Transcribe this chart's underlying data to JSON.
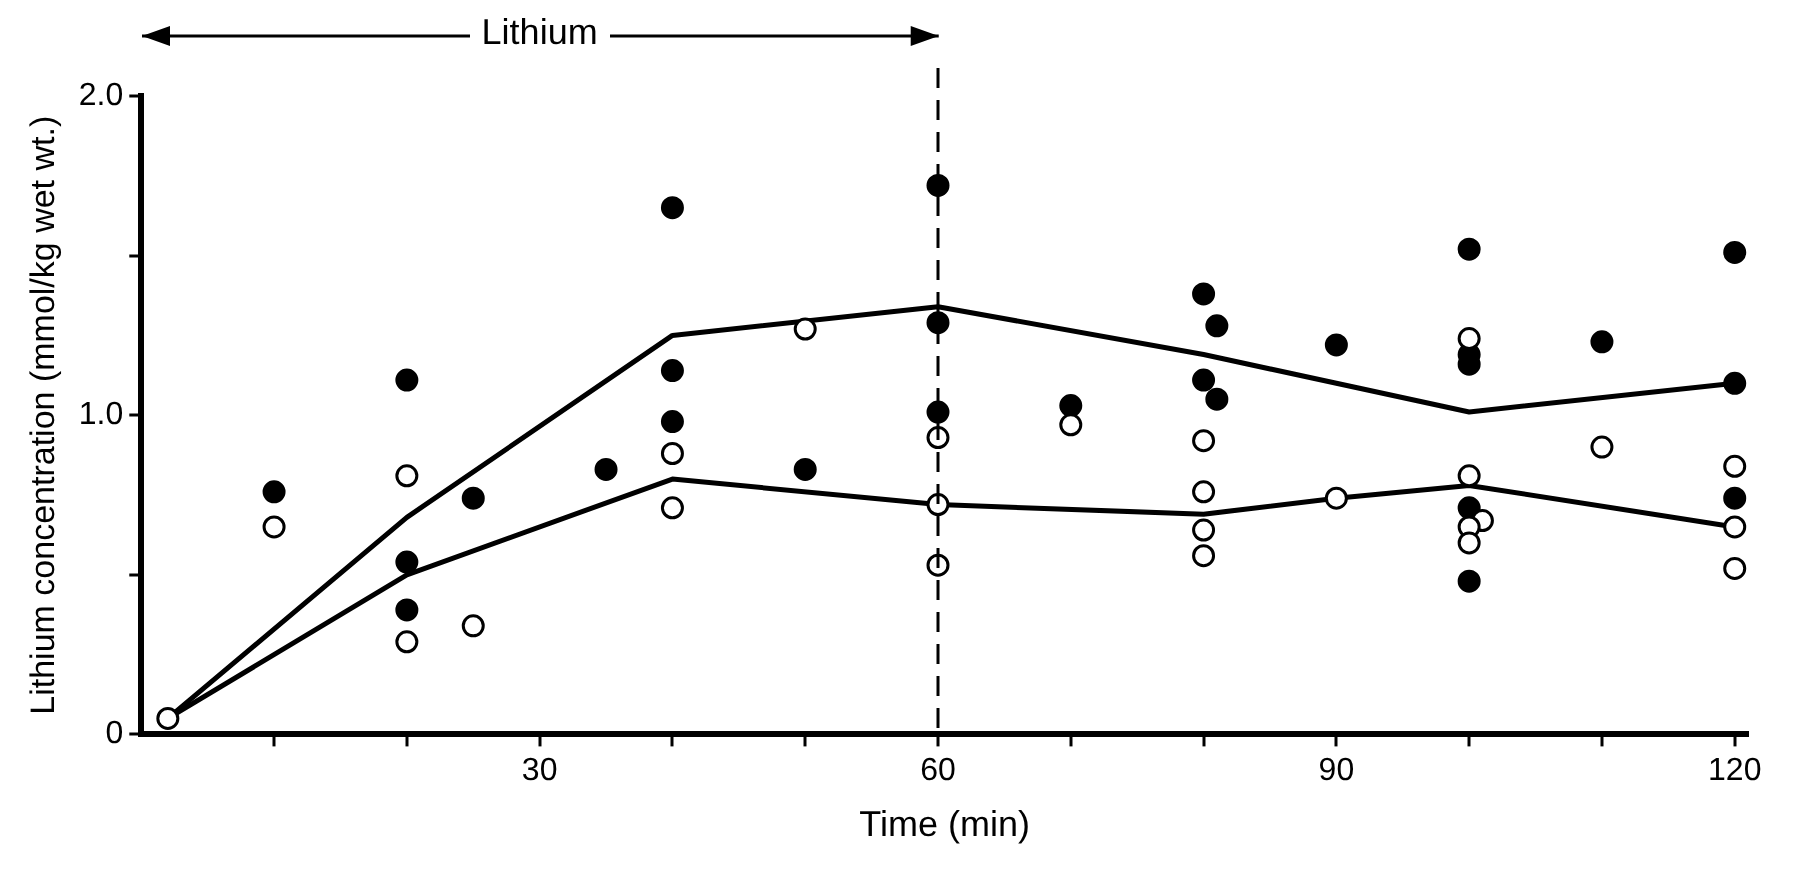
{
  "chart_data": {
    "type": "scatter",
    "xlabel": "Time (min)",
    "ylabel": "Lithium concentration (mmol/kg wet wt.)",
    "annotations": [
      "Lithium"
    ],
    "xlim": [
      0,
      121
    ],
    "ylim": [
      0,
      2.0
    ],
    "xticks": [
      {
        "value": 10,
        "label": null
      },
      {
        "value": 20,
        "label": null
      },
      30,
      {
        "value": 40,
        "label": null
      },
      {
        "value": 50,
        "label": null
      },
      60,
      {
        "value": 70,
        "label": null
      },
      {
        "value": 80,
        "label": null
      },
      90,
      {
        "value": 100,
        "label": null
      },
      {
        "value": 110,
        "label": null
      },
      120
    ],
    "yticks": [
      0,
      {
        "value": 0.5,
        "label": null
      },
      {
        "value": 1,
        "label": "1.0"
      },
      {
        "value": 1.5,
        "label": null
      },
      {
        "value": 2,
        "label": "2.0"
      }
    ],
    "grid": false,
    "legend": false,
    "marker": "circle",
    "ref_lines": [
      {
        "axis": "x",
        "value": 60,
        "line_style": "dashed",
        "color": "#000000"
      }
    ],
    "series": [
      {
        "type": "scatter",
        "color": "#000000",
        "x": [
          10,
          20,
          20,
          20,
          25,
          35,
          40,
          40,
          40,
          50,
          60,
          60,
          60,
          70,
          80,
          81,
          80,
          81,
          90,
          100,
          100,
          100,
          100,
          100,
          110,
          120,
          120,
          120
        ],
        "values": [
          0.76,
          1.11,
          0.54,
          0.39,
          0.74,
          0.83,
          1.65,
          1.14,
          0.98,
          0.83,
          1.72,
          1.29,
          1.01,
          1.03,
          1.38,
          1.28,
          1.11,
          1.05,
          1.22,
          1.52,
          1.19,
          1.16,
          0.71,
          0.48,
          1.23,
          1.51,
          1.1,
          0.74
        ]
      },
      {
        "type": "scatter",
        "color": "#000000",
        "x": [
          2,
          10,
          20,
          20,
          25,
          40,
          40,
          50,
          60,
          60,
          60,
          70,
          80,
          80,
          80,
          80,
          90,
          100,
          100,
          101,
          100,
          100,
          110,
          120,
          120,
          120
        ],
        "values": [
          0.05,
          0.65,
          0.81,
          0.29,
          0.34,
          0.88,
          0.71,
          1.27,
          0.93,
          0.72,
          0.53,
          0.97,
          0.92,
          0.76,
          0.64,
          0.56,
          0.74,
          1.24,
          0.81,
          0.67,
          0.65,
          0.6,
          0.9,
          0.84,
          0.65,
          0.52
        ]
      },
      {
        "type": "line",
        "marker": "none",
        "color": "#000000",
        "x": [
          2,
          20,
          40,
          60,
          80,
          100,
          120
        ],
        "values": [
          0.05,
          0.68,
          1.25,
          1.34,
          1.19,
          1.01,
          1.1
        ]
      },
      {
        "type": "line",
        "marker": "none",
        "color": "#000000",
        "x": [
          2,
          20,
          40,
          60,
          80,
          90,
          100,
          120
        ],
        "values": [
          0.05,
          0.5,
          0.8,
          0.72,
          0.69,
          0.74,
          0.78,
          0.65
        ]
      }
    ]
  }
}
